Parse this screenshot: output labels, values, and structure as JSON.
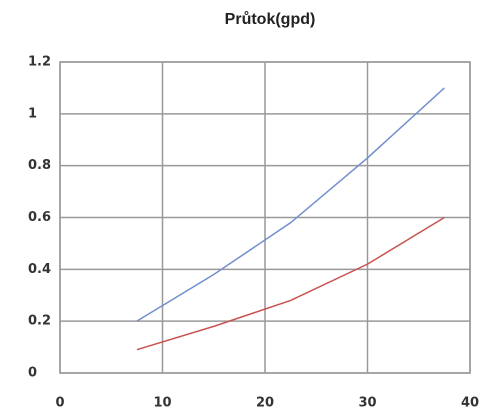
{
  "chart_data": {
    "type": "line",
    "title": "Průtok(gpd)",
    "x": [
      7.5,
      15,
      22.5,
      30,
      37.5
    ],
    "series": [
      {
        "color": "#6f8fd0",
        "values": [
          0.2,
          0.38,
          0.58,
          0.83,
          1.1
        ]
      },
      {
        "color": "#c9524f",
        "values": [
          0.09,
          0.18,
          0.28,
          0.42,
          0.6
        ]
      }
    ],
    "xlim": [
      0,
      40
    ],
    "xticks": [
      0,
      10,
      20,
      30,
      40
    ],
    "ylim": [
      0,
      1.2
    ],
    "yticks": [
      0,
      0.2,
      0.4,
      0.6,
      0.8,
      1,
      1.2
    ],
    "grid": true
  }
}
